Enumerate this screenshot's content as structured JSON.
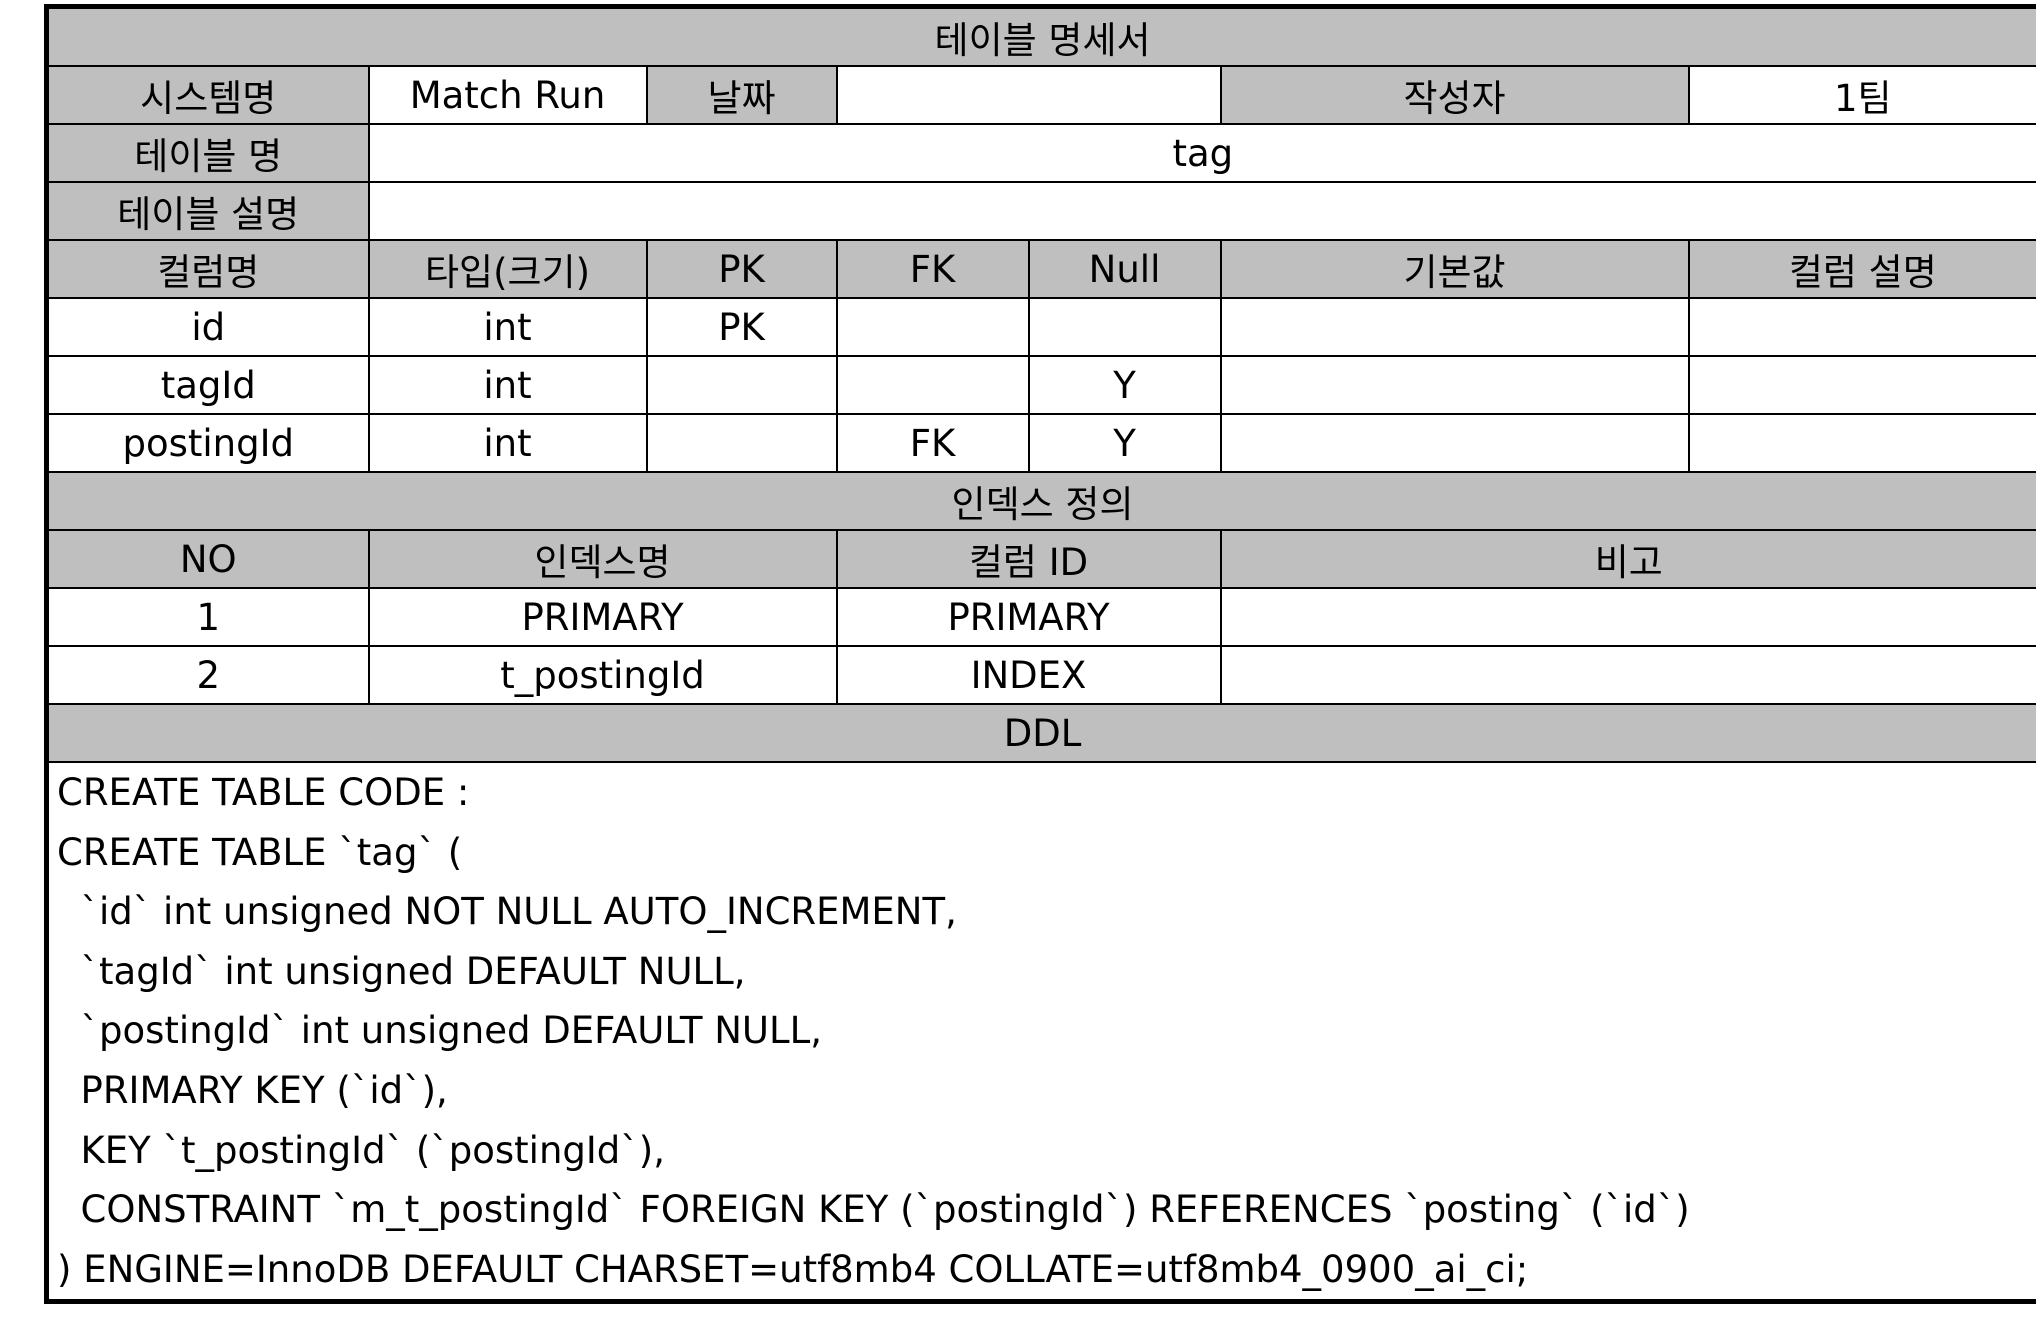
{
  "title": "테이블 명세서",
  "meta": {
    "system_label": "시스템명",
    "system_value": "Match Run",
    "date_label": "날짜",
    "date_value": "",
    "author_label": "작성자",
    "author_value": "1팀",
    "table_name_label": "테이블 명",
    "table_name_value": "tag",
    "table_desc_label": "테이블 설명",
    "table_desc_value": ""
  },
  "columns": {
    "headers": [
      "컬럼명",
      "타입(크기)",
      "PK",
      "FK",
      "Null",
      "기본값",
      "컬럼 설명"
    ],
    "rows": [
      [
        "id",
        "int",
        "PK",
        "",
        "",
        "",
        ""
      ],
      [
        "tagId",
        "int",
        "",
        "",
        "Y",
        "",
        ""
      ],
      [
        "postingId",
        "int",
        "",
        "FK",
        "Y",
        "",
        ""
      ]
    ]
  },
  "indexes": {
    "section_title": "인덱스 정의",
    "headers": [
      "NO",
      "인덱스명",
      "컬럼 ID",
      "비고"
    ],
    "rows": [
      [
        "1",
        "PRIMARY",
        "PRIMARY",
        ""
      ],
      [
        "2",
        "t_postingId",
        "INDEX",
        ""
      ]
    ]
  },
  "ddl": {
    "section_title": "DDL",
    "lines": [
      "CREATE TABLE CODE :",
      "CREATE TABLE `tag` (",
      "  `id` int unsigned NOT NULL AUTO_INCREMENT,",
      "  `tagId` int unsigned DEFAULT NULL,",
      "  `postingId` int unsigned DEFAULT NULL,",
      "  PRIMARY KEY (`id`),",
      "  KEY `t_postingId` (`postingId`),",
      "  CONSTRAINT `m_t_postingId` FOREIGN KEY (`postingId`) REFERENCES `posting` (`id`)",
      ") ENGINE=InnoDB DEFAULT CHARSET=utf8mb4 COLLATE=utf8mb4_0900_ai_ci;"
    ]
  }
}
